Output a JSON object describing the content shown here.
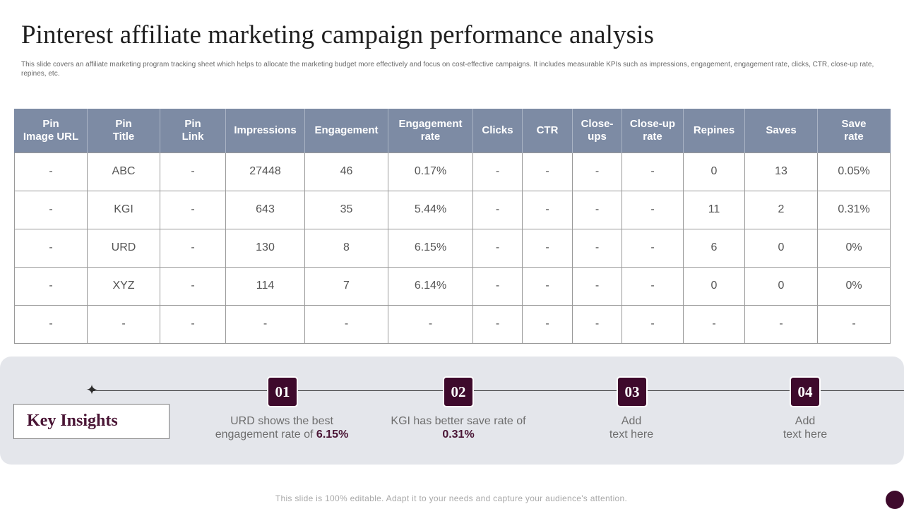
{
  "title": "Pinterest affiliate marketing campaign performance analysis",
  "subtitle": "This slide covers an affiliate marketing program tracking sheet which helps to allocate the marketing budget more effectively and focus on cost-effective campaigns. It includes measurable KPIs  such as impressions, engagement,  engagement rate, clicks, CTR,  close-up rate, repines, etc.",
  "table": {
    "headers": [
      "Pin\nImage URL",
      "Pin\nTitle",
      "Pin\nLink",
      "Impressions",
      "Engagement",
      "Engagement\nrate",
      "Clicks",
      "CTR",
      "Close-\nups",
      "Close-up\nrate",
      "Repines",
      "Saves",
      "Save\nrate"
    ],
    "rows": [
      [
        "-",
        "ABC",
        "-",
        "27448",
        "46",
        "0.17%",
        "-",
        "-",
        "-",
        "-",
        "0",
        "13",
        "0.05%"
      ],
      [
        "-",
        "KGI",
        "-",
        "643",
        "35",
        "5.44%",
        "-",
        "-",
        "-",
        "-",
        "11",
        "2",
        "0.31%"
      ],
      [
        "-",
        "URD",
        "-",
        "130",
        "8",
        "6.15%",
        "-",
        "-",
        "-",
        "-",
        "6",
        "0",
        "0%"
      ],
      [
        "-",
        "XYZ",
        "-",
        "114",
        "7",
        "6.14%",
        "-",
        "-",
        "-",
        "-",
        "0",
        "0",
        "0%"
      ],
      [
        "-",
        "-",
        "-",
        "-",
        "-",
        "-",
        "-",
        "-",
        "-",
        "-",
        "-",
        "-",
        "-"
      ]
    ]
  },
  "insights": {
    "label": "Key Insights",
    "items": [
      {
        "number": "01",
        "text_before": "URD shows the best engagement rate of ",
        "highlight": "6.15%"
      },
      {
        "number": "02",
        "text_before": "KGI has better save rate of ",
        "highlight": "0.31%"
      },
      {
        "number": "03",
        "text_before": "Add\ntext here",
        "highlight": ""
      },
      {
        "number": "04",
        "text_before": "Add\ntext here",
        "highlight": ""
      }
    ]
  },
  "footer": "This slide is 100% editable. Adapt it to your needs and capture your audience's attention.",
  "colors": {
    "header_bg": "#7d8ba4",
    "accent": "#3e0a2c",
    "panel_bg": "#e4e6eb"
  }
}
